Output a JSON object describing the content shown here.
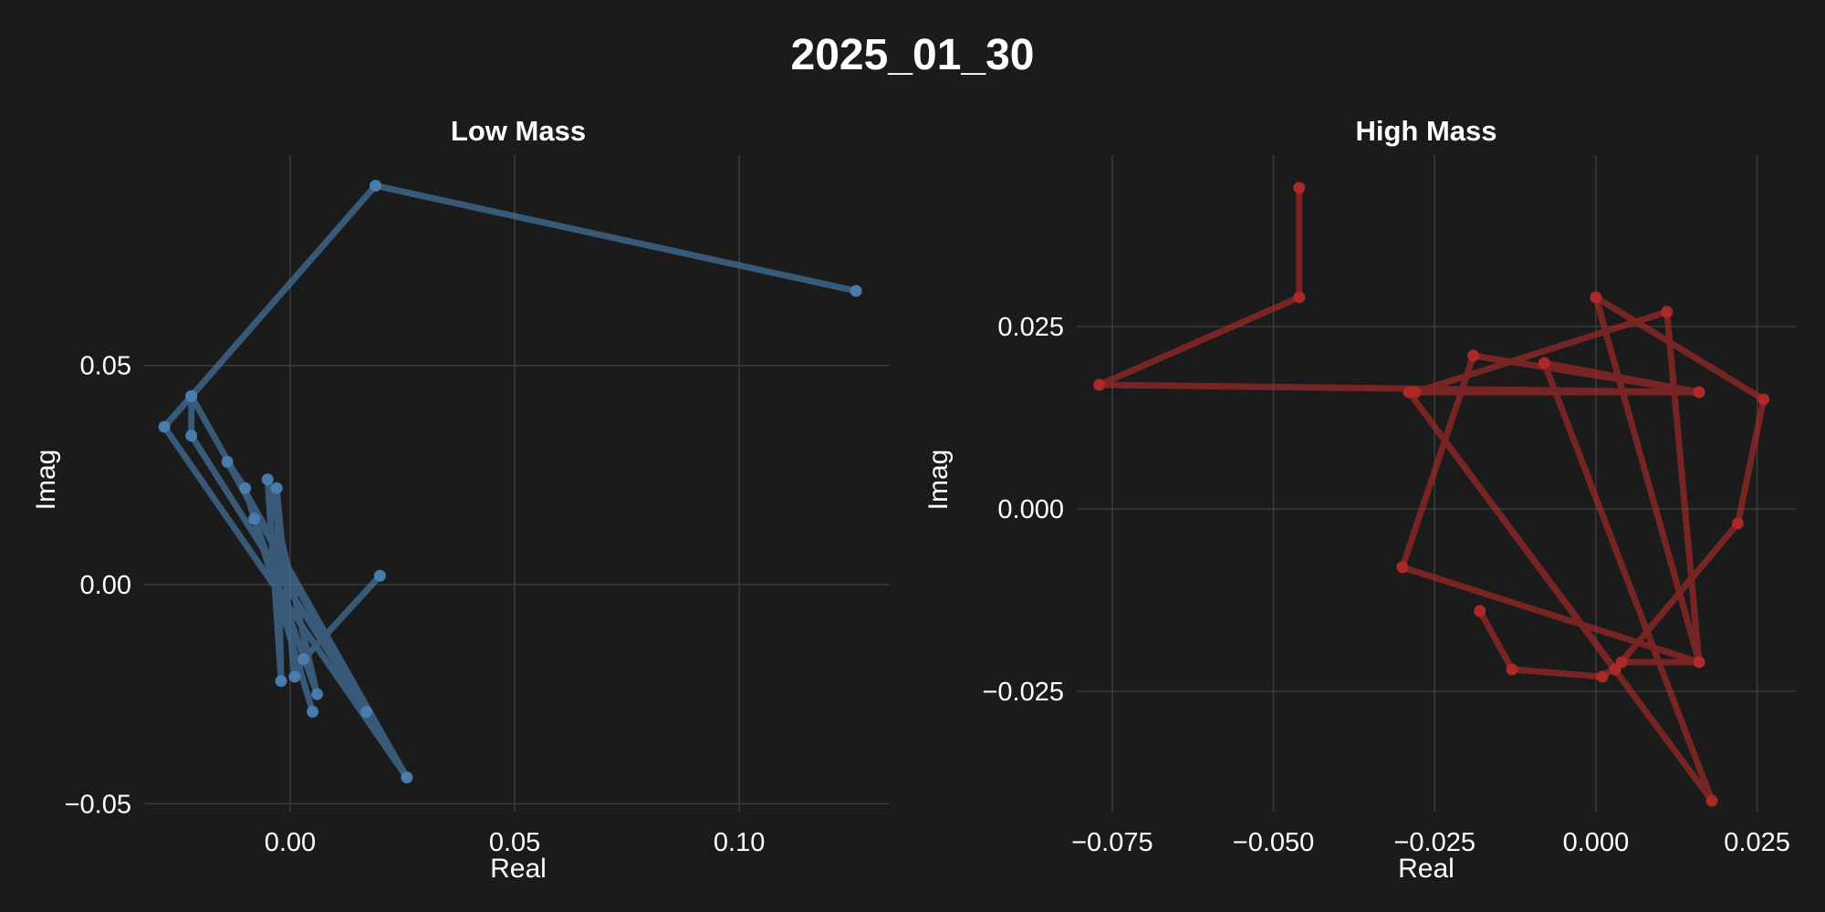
{
  "figure": {
    "title": "2025_01_30",
    "background": "#1b1b1b",
    "grid_color": "#3b3b3b"
  },
  "chart_data": [
    {
      "type": "line",
      "title": "Low Mass",
      "xlabel": "Real",
      "ylabel": "Imag",
      "xlim": [
        -0.0325,
        0.1335
      ],
      "ylim": [
        -0.0518,
        0.098
      ],
      "grid": true,
      "xticks": [
        0.0,
        0.05,
        0.1
      ],
      "xtick_labels": [
        "0.00",
        "0.05",
        "0.10"
      ],
      "yticks": [
        -0.05,
        0.0,
        0.05
      ],
      "ytick_labels": [
        "−0.05",
        "0.00",
        "0.05"
      ],
      "series": [
        {
          "color": "#4a7fb0",
          "points": [
            [
              0.126,
              0.067
            ],
            [
              0.019,
              0.091
            ],
            [
              -0.022,
              0.043
            ],
            [
              -0.028,
              0.036
            ],
            [
              0.026,
              -0.044
            ],
            [
              -0.022,
              0.043
            ],
            [
              -0.022,
              0.034
            ],
            [
              0.017,
              -0.029
            ],
            [
              -0.014,
              0.028
            ],
            [
              -0.01,
              0.022
            ],
            [
              0.005,
              -0.029
            ],
            [
              -0.008,
              0.015
            ],
            [
              0.006,
              -0.025
            ],
            [
              -0.005,
              0.024
            ],
            [
              -0.002,
              -0.022
            ],
            [
              -0.003,
              0.022
            ],
            [
              0.001,
              -0.021
            ],
            [
              0.003,
              -0.017
            ],
            [
              0.02,
              0.002
            ]
          ]
        }
      ]
    },
    {
      "type": "line",
      "title": "High Mass",
      "xlabel": "Real",
      "ylabel": "Imag",
      "xlim": [
        -0.0805,
        0.031
      ],
      "ylim": [
        -0.0415,
        0.0485
      ],
      "grid": true,
      "xticks": [
        -0.075,
        -0.05,
        -0.025,
        0.0,
        0.025
      ],
      "xtick_labels": [
        "−0.075",
        "−0.050",
        "−0.025",
        "0.000",
        "0.025"
      ],
      "yticks": [
        -0.025,
        0.0,
        0.025
      ],
      "ytick_labels": [
        "−0.025",
        "0.000",
        "0.025"
      ],
      "series": [
        {
          "color": "#b02a2a",
          "points": [
            [
              -0.046,
              0.044
            ],
            [
              -0.046,
              0.029
            ],
            [
              -0.077,
              0.017
            ],
            [
              0.016,
              0.016
            ],
            [
              -0.028,
              0.016
            ],
            [
              0.011,
              0.027
            ],
            [
              0.016,
              -0.021
            ],
            [
              0.0,
              0.029
            ],
            [
              0.026,
              0.015
            ],
            [
              0.022,
              -0.002
            ],
            [
              0.003,
              -0.022
            ],
            [
              -0.029,
              0.016
            ],
            [
              0.018,
              -0.04
            ],
            [
              -0.008,
              0.02
            ],
            [
              0.016,
              0.016
            ],
            [
              -0.019,
              0.021
            ],
            [
              -0.03,
              -0.008
            ],
            [
              0.016,
              -0.021
            ],
            [
              0.004,
              -0.021
            ],
            [
              0.001,
              -0.023
            ],
            [
              -0.013,
              -0.022
            ],
            [
              -0.018,
              -0.014
            ]
          ]
        }
      ]
    }
  ]
}
